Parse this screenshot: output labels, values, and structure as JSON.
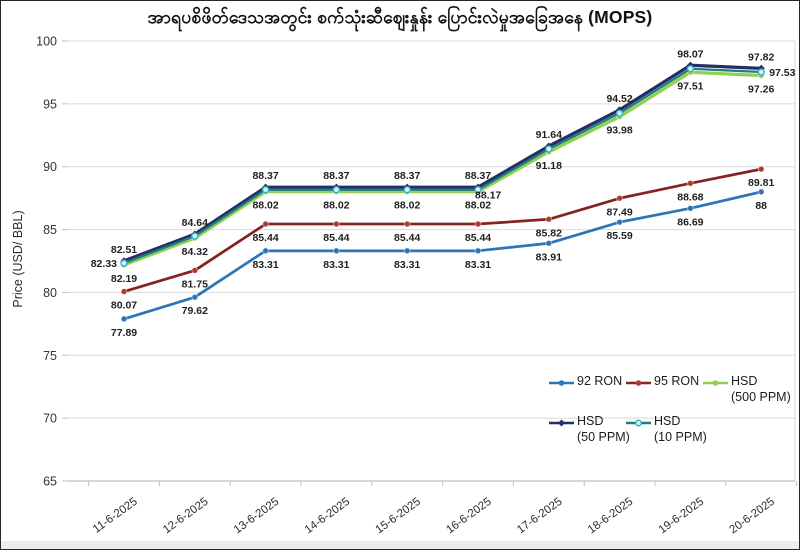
{
  "chart_data": {
    "type": "line",
    "title": "အာရပစိဖိတ်ဒေသအတွင်း စက်သုံးဆီဈေးနှုန်း ပြောင်းလဲမှုအခြေအနေ (MOPS)",
    "ylabel": "Price (USD/ BBL)",
    "xlabel": "",
    "ylim": [
      65,
      100
    ],
    "ytick_step": 5,
    "grid": "horizontal",
    "categories": [
      "11-6-2025",
      "12-6-2025",
      "13-6-2025",
      "14-6-2025",
      "15-6-2025",
      "16-6-2025",
      "17-6-2025",
      "18-6-2025",
      "19-6-2025",
      "20-6-2025"
    ],
    "series": [
      {
        "name": "92 RON",
        "color": "#2E75B6",
        "marker": "circle",
        "label_pos": "below",
        "values": [
          77.89,
          79.62,
          83.31,
          83.31,
          83.31,
          83.31,
          83.91,
          85.59,
          86.69,
          88
        ],
        "labels": [
          "77.89",
          "79.62",
          "83.31",
          "83.31",
          "83.31",
          "83.31",
          "83.91",
          "85.59",
          "86.69",
          "88"
        ]
      },
      {
        "name": "95 RON",
        "color": "#85241F",
        "marker": "circle",
        "label_pos": "below",
        "values": [
          80.07,
          81.75,
          85.44,
          85.44,
          85.44,
          85.44,
          85.82,
          87.49,
          88.68,
          89.81
        ],
        "labels": [
          "80.07",
          "81.75",
          "85.44",
          "85.44",
          "85.44",
          "85.44",
          "85.82",
          "87.49",
          "88.68",
          "89.81"
        ]
      },
      {
        "name": "HSD (500 PPM)",
        "color": "#92D050",
        "marker": "circle",
        "label_pos": "below",
        "values": [
          82.19,
          84.32,
          88.02,
          88.02,
          88.02,
          88.02,
          91.18,
          93.98,
          97.51,
          97.26
        ],
        "labels": [
          "82.19",
          "84.32",
          "88.02",
          "88.02",
          "88.02",
          "88.02",
          "91.18",
          "93.98",
          "97.51",
          "97.26"
        ]
      },
      {
        "name": "HSD (50 PPM)",
        "color": "#252F63",
        "marker": "diamond",
        "label_pos": "above",
        "values": [
          82.51,
          84.64,
          88.37,
          88.37,
          88.37,
          88.37,
          91.64,
          94.52,
          98.07,
          97.82
        ],
        "labels": [
          "82.51",
          "84.64",
          "88.37",
          "88.37",
          "88.37",
          "88.37",
          "91.64",
          "94.52",
          "98.07",
          "97.82"
        ]
      },
      {
        "name": "HSD (10 PPM)",
        "color": "#1D7C85",
        "marker": "open-circle",
        "label_pos": "side",
        "values": [
          82.33,
          84.48,
          88.17,
          88.17,
          88.17,
          88.17,
          91.41,
          94.25,
          97.79,
          97.53
        ],
        "labels": [
          "82.33",
          "",
          "",
          "",
          "",
          "88.17",
          "",
          "",
          "",
          "97.53"
        ]
      }
    ],
    "legend": {
      "position": "inside-bottom-right",
      "entries": [
        {
          "label": "92 RON",
          "sub": "",
          "series": "92 RON"
        },
        {
          "label": "95 RON",
          "sub": "",
          "series": "95 RON"
        },
        {
          "label": "HSD",
          "sub": "(500 PPM)",
          "series": "HSD (500 PPM)"
        },
        {
          "label": "HSD",
          "sub": "(50 PPM)",
          "series": "HSD (50 PPM)"
        },
        {
          "label": "HSD",
          "sub": "(10 PPM)",
          "series": "HSD (10 PPM)"
        }
      ]
    }
  }
}
